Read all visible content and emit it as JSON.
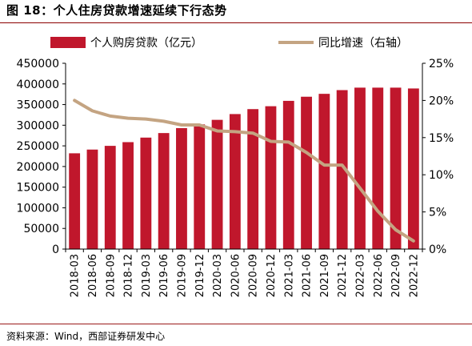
{
  "figure": {
    "title": "图 18：个人住房贷款增速延续下行态势",
    "source": "资料来源：Wind，西部证券研发中心"
  },
  "colors": {
    "bar": "#c0172c",
    "line": "#c4a482",
    "rule": "#8b0000"
  },
  "chart_data": {
    "type": "bar",
    "categories": [
      "2018-03",
      "2018-06",
      "2018-09",
      "2018-12",
      "2019-03",
      "2019-06",
      "2019-09",
      "2019-12",
      "2020-03",
      "2020-06",
      "2020-09",
      "2020-12",
      "2021-03",
      "2021-06",
      "2021-09",
      "2021-12",
      "2022-03",
      "2022-06",
      "2022-09",
      "2022-12"
    ],
    "series": [
      {
        "name": "个人购房贷款（亿元）",
        "type": "bar",
        "axis": "left",
        "values": [
          232000,
          241000,
          250000,
          259000,
          270000,
          281000,
          293000,
          302000,
          313000,
          327000,
          339000,
          346000,
          359000,
          369000,
          376000,
          385000,
          391000,
          391000,
          391000,
          389000
        ]
      },
      {
        "name": "同比增速（右轴）",
        "type": "line",
        "axis": "right",
        "values": [
          20.0,
          18.6,
          17.9,
          17.6,
          17.5,
          17.2,
          16.7,
          16.7,
          15.9,
          15.8,
          15.6,
          14.5,
          14.4,
          13.0,
          11.3,
          11.3,
          8.2,
          5.1,
          2.6,
          1.1
        ]
      }
    ],
    "y_left": {
      "ylim": [
        0,
        450000
      ],
      "ticks": [
        "0",
        "50000",
        "100000",
        "150000",
        "200000",
        "250000",
        "300000",
        "350000",
        "400000",
        "450000"
      ]
    },
    "y_right": {
      "ylim": [
        0,
        25
      ],
      "ticks": [
        "0%",
        "5%",
        "10%",
        "15%",
        "20%",
        "25%"
      ]
    },
    "legend": "top",
    "grid": false
  }
}
